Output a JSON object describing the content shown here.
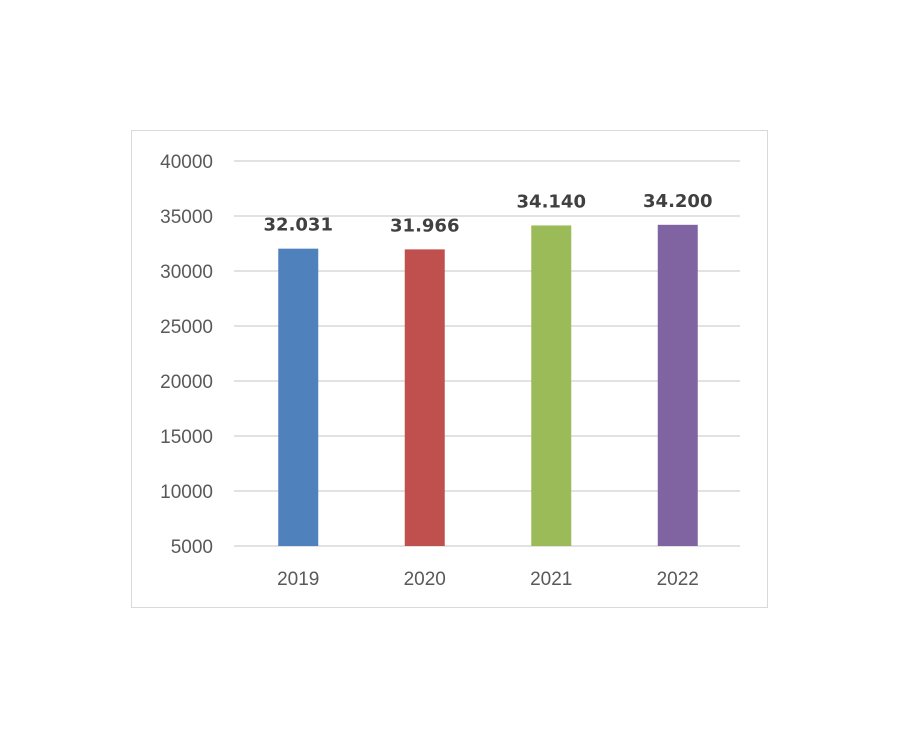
{
  "chart_data": {
    "type": "bar",
    "categories": [
      "2019",
      "2020",
      "2021",
      "2022"
    ],
    "values": [
      32031,
      31966,
      34140,
      34200
    ],
    "data_labels": [
      "32.031",
      "31.966",
      "34.140",
      "34.200"
    ],
    "colors": [
      "#4f81bd",
      "#c0504d",
      "#9bbb59",
      "#8064a2"
    ],
    "ylim": [
      5000,
      40000
    ],
    "yticks": [
      5000,
      10000,
      15000,
      20000,
      25000,
      30000,
      35000,
      40000
    ],
    "ytick_labels": [
      "5000",
      "10000",
      "15000",
      "20000",
      "25000",
      "30000",
      "35000",
      "40000"
    ],
    "grid": true,
    "legend": "none"
  }
}
